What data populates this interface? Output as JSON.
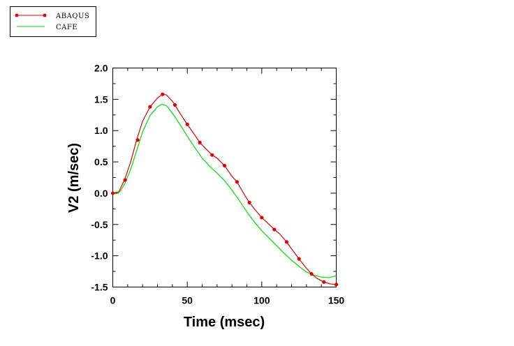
{
  "chart_data": {
    "type": "line",
    "title": "",
    "xlabel": "Time (msec)",
    "ylabel": "V2 (m/sec)",
    "xlim": [
      0,
      150
    ],
    "ylim": [
      -1.5,
      2.0
    ],
    "xticks": [
      0,
      50,
      100,
      150
    ],
    "yticks": [
      -1.5,
      -1.0,
      -0.5,
      0.0,
      0.5,
      1.0,
      1.5,
      2.0
    ],
    "xtick_labels": [
      "0",
      "50",
      "100",
      "150"
    ],
    "ytick_labels": [
      "-1.5",
      "-1.0",
      "-0.5",
      "0.0",
      "0.5",
      "1.0",
      "1.5",
      "2.0"
    ],
    "grid": false,
    "legend_position": "top-left",
    "series": [
      {
        "name": "ABAQUS",
        "color": "#e00000",
        "marker": "circle",
        "x": [
          0,
          4,
          8,
          12,
          16,
          20,
          25,
          30,
          33.4,
          36,
          40,
          41.7,
          45,
          50,
          55,
          58.4,
          62,
          66.7,
          70,
          75,
          80,
          83.4,
          88,
          91.7,
          95,
          100,
          105,
          108.4,
          112,
          116.7,
          120,
          125,
          130,
          133.4,
          137,
          141.7,
          146,
          150
        ],
        "y": [
          0.0,
          0.02,
          0.22,
          0.5,
          0.85,
          1.15,
          1.38,
          1.52,
          1.58,
          1.57,
          1.47,
          1.41,
          1.28,
          1.1,
          0.93,
          0.81,
          0.72,
          0.61,
          0.56,
          0.44,
          0.27,
          0.18,
          -0.01,
          -0.15,
          -0.25,
          -0.39,
          -0.5,
          -0.58,
          -0.65,
          -0.78,
          -0.89,
          -1.05,
          -1.2,
          -1.29,
          -1.36,
          -1.42,
          -1.45,
          -1.46
        ],
        "marker_x": [
          0,
          8.3,
          16.7,
          25,
          33.4,
          41.7,
          50,
          58.4,
          66.7,
          75,
          83.4,
          91.7,
          100,
          108.4,
          116.7,
          125,
          133.4,
          141.7,
          150
        ],
        "marker_y": [
          0.0,
          0.21,
          0.85,
          1.38,
          1.58,
          1.41,
          1.1,
          0.81,
          0.61,
          0.44,
          0.18,
          -0.15,
          -0.39,
          -0.58,
          -0.78,
          -1.05,
          -1.29,
          -1.42,
          -1.46
        ]
      },
      {
        "name": "CAFE",
        "color": "#00dd00",
        "marker": "none",
        "x": [
          0,
          2,
          5,
          8,
          12,
          16,
          20,
          25,
          30,
          33,
          36,
          40,
          45,
          50,
          55,
          60,
          65,
          70,
          75,
          80,
          85,
          90,
          95,
          100,
          105,
          110,
          115,
          120,
          125,
          130,
          135,
          140,
          145,
          150
        ],
        "y": [
          0.0,
          -0.01,
          0.03,
          0.15,
          0.38,
          0.68,
          0.98,
          1.24,
          1.38,
          1.42,
          1.4,
          1.28,
          1.1,
          0.91,
          0.73,
          0.56,
          0.43,
          0.32,
          0.2,
          0.05,
          -0.12,
          -0.3,
          -0.46,
          -0.6,
          -0.72,
          -0.84,
          -0.96,
          -1.07,
          -1.17,
          -1.26,
          -1.31,
          -1.34,
          -1.35,
          -1.32
        ]
      }
    ]
  }
}
